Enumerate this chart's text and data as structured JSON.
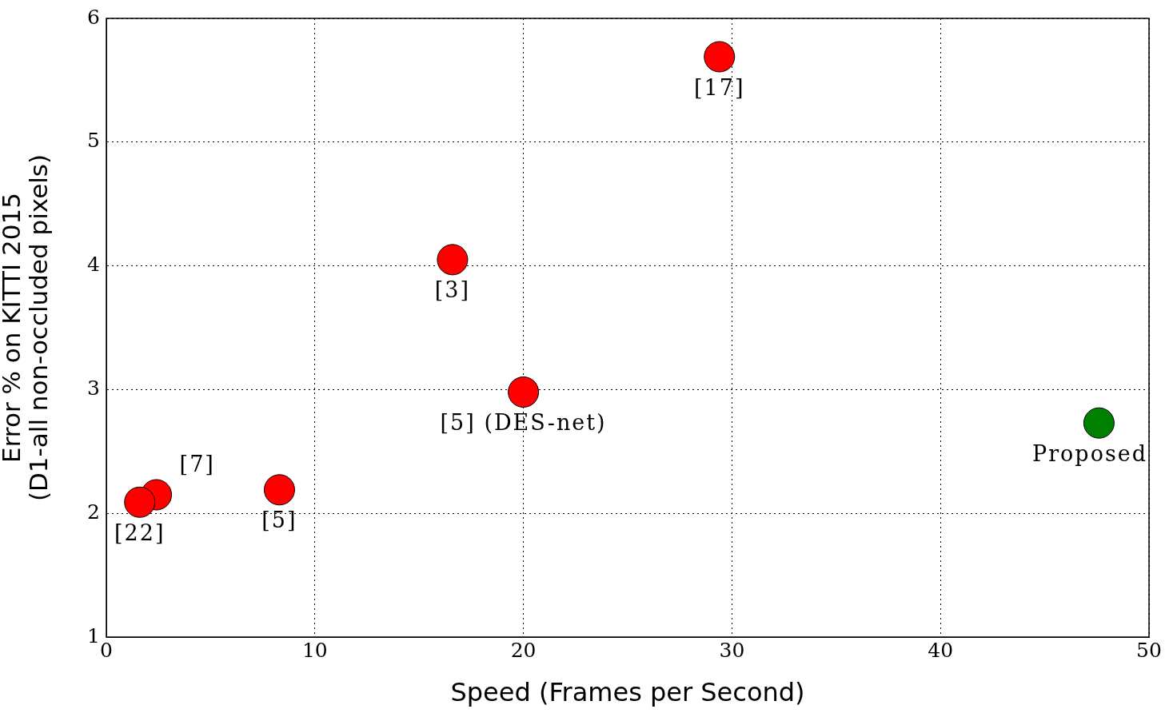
{
  "chart_data": {
    "type": "scatter",
    "xlabel": "Speed (Frames per Second)",
    "ylabel": "Error % on KITTI 2015\n(D1-all non-occluded pixels)",
    "xlim": [
      0,
      50
    ],
    "xticks": [
      0,
      10,
      20,
      30,
      40,
      50
    ],
    "ylim": [
      1,
      6
    ],
    "yticks": [
      1,
      2,
      3,
      4,
      5,
      6
    ],
    "grid": true,
    "legend": false,
    "marker": "circle",
    "series": [
      {
        "color": "#ff0000",
        "x": [
          29.4,
          16.6,
          20.0,
          8.3,
          2.4,
          1.6
        ],
        "values": [
          5.69,
          4.05,
          2.98,
          2.19,
          2.15,
          2.09
        ]
      },
      {
        "color": "#008000",
        "x": [
          47.6
        ],
        "values": [
          2.73
        ]
      }
    ],
    "annotations": [
      {
        "text": "[17]",
        "x": 29.4,
        "y": 5.69
      },
      {
        "text": "[3]",
        "x": 16.6,
        "y": 4.05
      },
      {
        "text": "[5] (DES-net)",
        "x": 20.0,
        "y": 2.98
      },
      {
        "text": "[5]",
        "x": 8.3,
        "y": 2.19
      },
      {
        "text": "[22]",
        "x": 1.6,
        "y": 2.09
      },
      {
        "text": "[7]",
        "x": 2.4,
        "y": 2.15
      },
      {
        "text": "Proposed",
        "x": 47.6,
        "y": 2.73
      }
    ]
  }
}
